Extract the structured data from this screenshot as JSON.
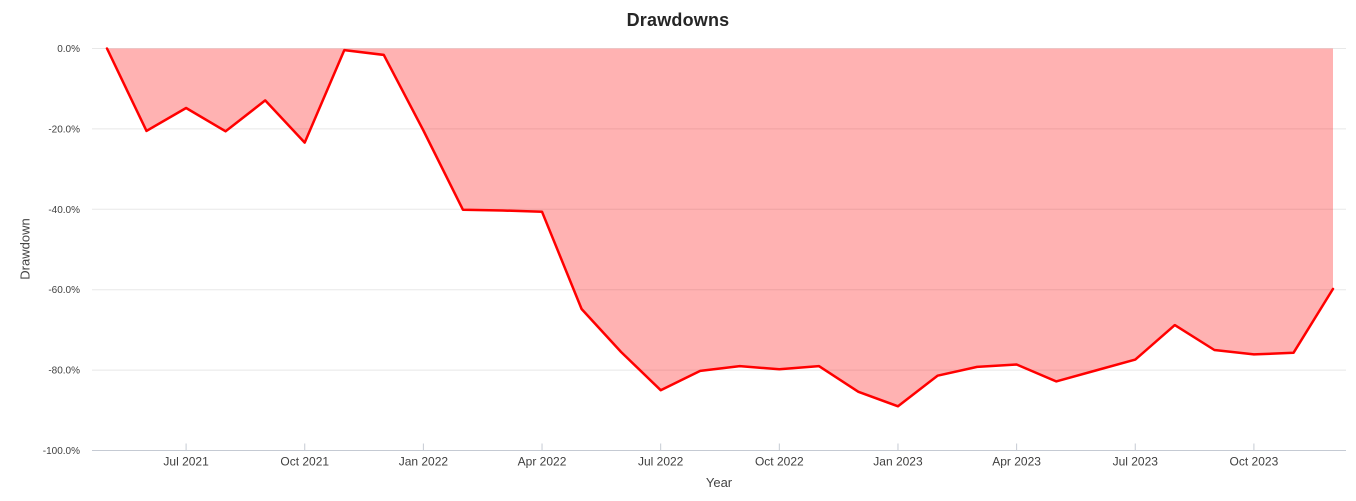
{
  "title": "Drawdowns",
  "colors": {
    "line": "#ff0000",
    "fill": "rgba(255,0,0,0.30)",
    "grid": "#e8e8e8",
    "axis_line": "#c5cad3",
    "tick_mark": "#c5cad3",
    "tick_text": "#3f3f3f",
    "title_text": "#262626",
    "background": "#ffffff"
  },
  "chart_data": {
    "type": "area",
    "title": "Drawdowns",
    "xlabel": "Year",
    "ylabel": "Drawdown",
    "series_name": "Drawdown",
    "fill_to": 0,
    "grid": "horizontal",
    "legend": "none",
    "ylim": [
      -100,
      0
    ],
    "x": [
      "May 2021",
      "Jun 2021",
      "Jul 2021",
      "Aug 2021",
      "Sep 2021",
      "Oct 2021",
      "Nov 2021",
      "Dec 2021",
      "Jan 2022",
      "Feb 2022",
      "Mar 2022",
      "Apr 2022",
      "May 2022",
      "Jun 2022",
      "Jul 2022",
      "Aug 2022",
      "Sep 2022",
      "Oct 2022",
      "Nov 2022",
      "Dec 2022",
      "Jan 2023",
      "Feb 2023",
      "Mar 2023",
      "Apr 2023",
      "May 2023",
      "Jun 2023",
      "Jul 2023",
      "Aug 2023",
      "Sep 2023",
      "Oct 2023",
      "Nov 2023",
      "Dec 2023"
    ],
    "values": [
      0.0,
      -20.5,
      -14.8,
      -20.6,
      -12.9,
      -23.4,
      -0.4,
      -1.6,
      -20.4,
      -40.1,
      -40.3,
      -40.6,
      -64.8,
      -75.5,
      -85.0,
      -80.2,
      -79.0,
      -79.8,
      -79.0,
      -85.4,
      -89.0,
      -81.4,
      -79.2,
      -78.6,
      -82.8,
      -80.1,
      -77.4,
      -68.8,
      -75.0,
      -76.1,
      -75.7,
      -59.8
    ],
    "x_ticks": [
      "Jul 2021",
      "Oct 2021",
      "Jan 2022",
      "Apr 2022",
      "Jul 2022",
      "Oct 2022",
      "Jan 2023",
      "Apr 2023",
      "Jul 2023",
      "Oct 2023"
    ],
    "y_ticks": [
      {
        "label": "0.0%",
        "value": 0
      },
      {
        "label": "-20.0%",
        "value": -20
      },
      {
        "label": "-40.0%",
        "value": -40
      },
      {
        "label": "-60.0%",
        "value": -60
      },
      {
        "label": "-80.0%",
        "value": -80
      },
      {
        "label": "-100.0%",
        "value": -100
      }
    ]
  }
}
